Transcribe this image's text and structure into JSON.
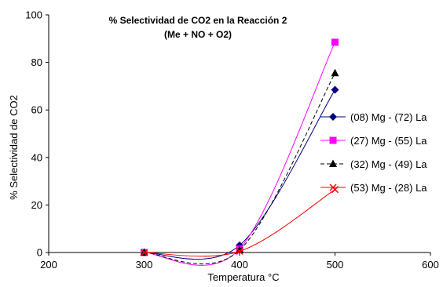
{
  "chart_data": {
    "type": "line",
    "title_line1": "% Selectividad de CO2 en la Reacción 2",
    "title_line2": "(Me + NO + O2)",
    "xlabel": "Temperatura °C",
    "ylabel": "% Selectividad de CO2",
    "xlim": [
      200,
      600
    ],
    "ylim": [
      0,
      100
    ],
    "xticks": [
      "200",
      "300",
      "400",
      "500",
      "600"
    ],
    "yticks": [
      "0",
      "20",
      "40",
      "60",
      "80",
      "100"
    ],
    "x": [
      300,
      400,
      500
    ],
    "grid": false,
    "legend_position": "right",
    "series": [
      {
        "name": "(08) Mg - (72) La",
        "values": [
          0,
          3,
          68.5
        ],
        "color": "#000080",
        "marker": "diamond",
        "dash": "solid"
      },
      {
        "name": "(27) Mg - (55) La",
        "values": [
          0,
          1.5,
          88.5
        ],
        "color": "#ff00ff",
        "marker": "square",
        "dash": "solid"
      },
      {
        "name": "(32) Mg - (49) La",
        "values": [
          0,
          1,
          75.5
        ],
        "color": "#000000",
        "marker": "triangle",
        "dash": "dashed"
      },
      {
        "name": "(53) Mg - (28) La",
        "values": [
          0,
          0.5,
          26.5
        ],
        "color": "#ff0000",
        "marker": "x",
        "dash": "solid"
      }
    ]
  }
}
